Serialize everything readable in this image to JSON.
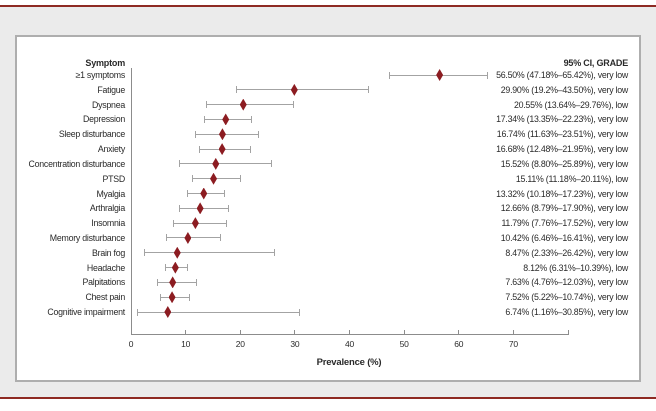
{
  "figure": {
    "col_header_left": "Symptom",
    "col_header_right": "95% CI, GRADE",
    "axis_title": "Prevalence (%)"
  },
  "chart_data": {
    "type": "forest",
    "title": "",
    "xlabel": "Prevalence (%)",
    "xlim": [
      0,
      80
    ],
    "xticks": [
      0,
      10,
      20,
      30,
      40,
      50,
      60,
      70
    ],
    "grid": false,
    "col_headers": [
      "Symptom",
      "95% CI, GRADE"
    ],
    "rows": [
      {
        "symptom": "≥1 symptoms",
        "estimate": 56.5,
        "ci_low": 47.18,
        "ci_high": 65.42,
        "grade": "very low",
        "ci_label": "56.50% (47.18%–65.42%), very low"
      },
      {
        "symptom": "Fatigue",
        "estimate": 29.9,
        "ci_low": 19.2,
        "ci_high": 43.5,
        "grade": "very low",
        "ci_label": "29.90% (19.2%–43.50%), very low"
      },
      {
        "symptom": "Dyspnea",
        "estimate": 20.55,
        "ci_low": 13.64,
        "ci_high": 29.76,
        "grade": "low",
        "ci_label": "20.55% (13.64%–29.76%), low"
      },
      {
        "symptom": "Depression",
        "estimate": 17.34,
        "ci_low": 13.35,
        "ci_high": 22.23,
        "grade": "very low",
        "ci_label": "17.34% (13.35%–22.23%), very low"
      },
      {
        "symptom": "Sleep disturbance",
        "estimate": 16.74,
        "ci_low": 11.63,
        "ci_high": 23.51,
        "grade": "very low",
        "ci_label": "16.74% (11.63%–23.51%), very low"
      },
      {
        "symptom": "Anxiety",
        "estimate": 16.68,
        "ci_low": 12.48,
        "ci_high": 21.95,
        "grade": "very low",
        "ci_label": "16.68% (12.48%–21.95%), very low"
      },
      {
        "symptom": "Concentration disturbance",
        "estimate": 15.52,
        "ci_low": 8.8,
        "ci_high": 25.89,
        "grade": "very low",
        "ci_label": "15.52% (8.80%–25.89%), very low"
      },
      {
        "symptom": "PTSD",
        "estimate": 15.11,
        "ci_low": 11.18,
        "ci_high": 20.11,
        "grade": "low",
        "ci_label": "15.11% (11.18%–20.11%), low"
      },
      {
        "symptom": "Myalgia",
        "estimate": 13.32,
        "ci_low": 10.18,
        "ci_high": 17.23,
        "grade": "very low",
        "ci_label": "13.32% (10.18%–17.23%), very low"
      },
      {
        "symptom": "Arthralgia",
        "estimate": 12.66,
        "ci_low": 8.79,
        "ci_high": 17.9,
        "grade": "very low",
        "ci_label": "12.66% (8.79%–17.90%), very low"
      },
      {
        "symptom": "Insomnia",
        "estimate": 11.79,
        "ci_low": 7.76,
        "ci_high": 17.52,
        "grade": "very low",
        "ci_label": "11.79% (7.76%–17.52%), very low"
      },
      {
        "symptom": "Memory disturbance",
        "estimate": 10.42,
        "ci_low": 6.46,
        "ci_high": 16.41,
        "grade": "very low",
        "ci_label": "10.42% (6.46%–16.41%), very low"
      },
      {
        "symptom": "Brain fog",
        "estimate": 8.47,
        "ci_low": 2.33,
        "ci_high": 26.42,
        "grade": "very low",
        "ci_label": "8.47% (2.33%–26.42%), very low"
      },
      {
        "symptom": "Headache",
        "estimate": 8.12,
        "ci_low": 6.31,
        "ci_high": 10.39,
        "grade": "low",
        "ci_label": "8.12% (6.31%–10.39%), low"
      },
      {
        "symptom": "Palpitations",
        "estimate": 7.63,
        "ci_low": 4.76,
        "ci_high": 12.03,
        "grade": "very low",
        "ci_label": "7.63% (4.76%–12.03%), very low"
      },
      {
        "symptom": "Chest pain",
        "estimate": 7.52,
        "ci_low": 5.22,
        "ci_high": 10.74,
        "grade": "very low",
        "ci_label": "7.52% (5.22%–10.74%), very low"
      },
      {
        "symptom": "Cognitive impairment",
        "estimate": 6.74,
        "ci_low": 1.16,
        "ci_high": 30.85,
        "grade": "very low",
        "ci_label": "6.74% (1.16%–30.85%), very low"
      }
    ]
  },
  "colors": {
    "diamond": "#8c1c21",
    "whisker": "#a3a3a3",
    "axis": "#8c8c8c",
    "rule": "#8e2a23",
    "panel_border": "#aeaeae",
    "page_background": "#ebebeb",
    "text": "#2a2a2a"
  }
}
